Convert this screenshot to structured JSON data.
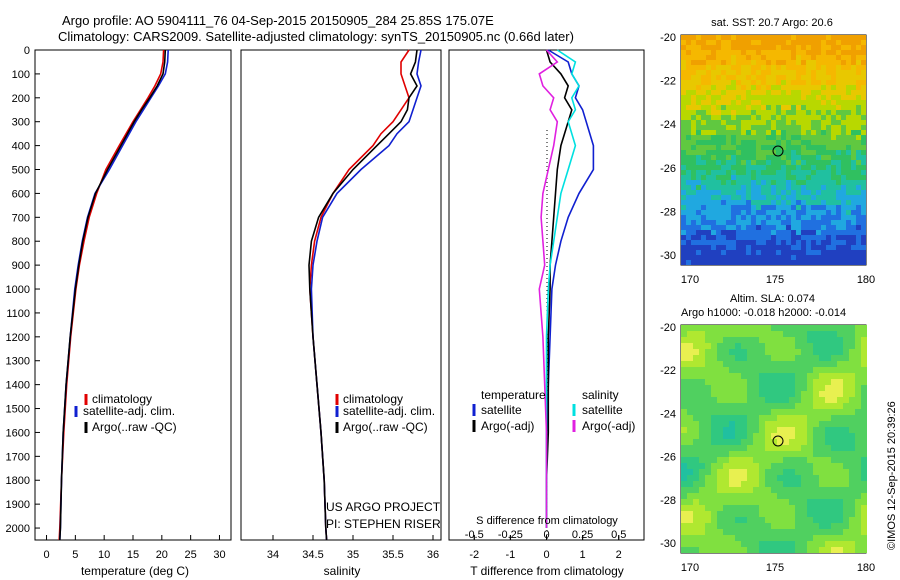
{
  "header": {
    "title_line1": "Argo profile: AO 5904111_76 04-Sep-2015 20150905_284 25.85S 175.07E",
    "title_line2": "Climatology: CARS2009. Satellite-adjusted climatology: synTS_20150905.nc (0.66d later)"
  },
  "colors": {
    "climatology": "#e00000",
    "satellite": "#1020d0",
    "argo": "#000000",
    "satellite_salinity": "#00e0e0",
    "argo_salinity": "#e020e0"
  },
  "credit": {
    "line1": "US ARGO PROJECT",
    "line2": "PI: STEPHEN RISER"
  },
  "timestamp": "©IMOS 12-Sep-2015 20:39:26",
  "map_sst": {
    "title": "sat. SST: 20.7  Argo: 20.6",
    "lat_ticks": [
      "-20",
      "-22",
      "-24",
      "-26",
      "-28",
      "-30"
    ],
    "lon_ticks": [
      "170",
      "175",
      "180"
    ],
    "marker": {
      "lon": 175.07,
      "lat": -25.85
    }
  },
  "map_sla": {
    "title_line1": "Altim. SLA: 0.074",
    "title_line2": "Argo h1000: -0.018  h2000: -0.014",
    "lat_ticks": [
      "-20",
      "-22",
      "-24",
      "-26",
      "-28",
      "-30"
    ],
    "lon_ticks": [
      "170",
      "175",
      "180"
    ],
    "marker": {
      "lon": 175.07,
      "lat": -25.85
    }
  },
  "chart_data": [
    {
      "type": "line",
      "xlabel": "temperature (deg C)",
      "xlim": [
        -2,
        32
      ],
      "ylim": [
        2050,
        0
      ],
      "x_ticks": [
        "0",
        "5",
        "10",
        "15",
        "20",
        "25",
        "30"
      ],
      "y_ticks": [
        "0",
        "100",
        "200",
        "300",
        "400",
        "500",
        "600",
        "700",
        "800",
        "900",
        "1000",
        "1100",
        "1200",
        "1300",
        "1400",
        "1500",
        "1600",
        "1700",
        "1800",
        "1900",
        "2000"
      ],
      "legend": [
        "climatology",
        "satellite-adj. clim.",
        "Argo(..raw -QC)"
      ],
      "depth": [
        0,
        50,
        100,
        150,
        200,
        250,
        300,
        400,
        500,
        600,
        700,
        800,
        900,
        1000,
        1200,
        1400,
        1600,
        1800,
        2000,
        2050
      ],
      "series": [
        {
          "name": "climatology",
          "values": [
            20.3,
            20.2,
            19.8,
            18.8,
            17.6,
            16.3,
            15.0,
            12.6,
            10.3,
            8.7,
            7.4,
            6.5,
            5.7,
            5.1,
            4.2,
            3.5,
            3.0,
            2.6,
            2.3,
            2.2
          ]
        },
        {
          "name": "satellite-adj. clim.",
          "values": [
            21.1,
            21.0,
            20.6,
            19.4,
            18.1,
            16.8,
            15.5,
            13.2,
            10.9,
            8.4,
            7.1,
            6.2,
            5.5,
            4.9,
            4.1,
            3.4,
            2.9,
            2.6,
            2.4,
            2.3
          ]
        },
        {
          "name": "Argo(..raw -QC)",
          "values": [
            20.6,
            20.5,
            20.2,
            19.2,
            17.9,
            16.5,
            15.2,
            12.9,
            10.6,
            8.5,
            7.2,
            6.3,
            5.6,
            5.0,
            4.1,
            3.4,
            2.9,
            2.6,
            2.4,
            2.3
          ]
        }
      ]
    },
    {
      "type": "line",
      "xlabel": "salinity",
      "xlim": [
        33.6,
        36.1
      ],
      "ylim": [
        2050,
        0
      ],
      "x_ticks": [
        "34",
        "34.5",
        "35",
        "35.5",
        "36"
      ],
      "legend": [
        "climatology",
        "satellite-adj. clim.",
        "Argo(..raw -QC)"
      ],
      "depth": [
        0,
        50,
        100,
        150,
        200,
        250,
        300,
        350,
        400,
        500,
        600,
        700,
        800,
        900,
        1000,
        1200,
        1400,
        1600,
        1800,
        2000,
        2050
      ],
      "series": [
        {
          "name": "climatology",
          "values": [
            35.7,
            35.6,
            35.6,
            35.65,
            35.7,
            35.6,
            35.5,
            35.35,
            35.25,
            34.95,
            34.75,
            34.6,
            34.52,
            34.48,
            34.46,
            34.5,
            34.55,
            34.6,
            34.64,
            34.66,
            34.67
          ]
        },
        {
          "name": "satellite-adj. clim.",
          "values": [
            35.85,
            35.82,
            35.8,
            35.85,
            35.8,
            35.75,
            35.7,
            35.55,
            35.45,
            35.1,
            34.8,
            34.62,
            34.55,
            34.5,
            34.48,
            34.5,
            34.55,
            34.6,
            34.64,
            34.66,
            34.67
          ]
        },
        {
          "name": "Argo(..raw -QC)",
          "values": [
            35.8,
            35.78,
            35.72,
            35.8,
            35.7,
            35.68,
            35.6,
            35.45,
            35.3,
            35.0,
            34.75,
            34.57,
            34.48,
            34.45,
            34.46,
            34.5,
            34.55,
            34.6,
            34.64,
            34.66,
            34.67
          ]
        }
      ]
    },
    {
      "type": "line",
      "xlabel": "T difference from climatology",
      "xlabel_top": "S difference from climatology",
      "xlim": [
        -2.7,
        2.7
      ],
      "ylim": [
        2050,
        0
      ],
      "x_ticks": [
        "-2",
        "-1",
        "0",
        "1",
        "2"
      ],
      "x_ticks_top": [
        "-0.5",
        "-0.25",
        "0",
        "0.25",
        "0.5"
      ],
      "legend_left_title": "temperature",
      "legend_right_title": "salinity",
      "legend_left": [
        "satellite",
        "Argo(-adj)"
      ],
      "legend_right": [
        "satellite",
        "Argo(-adj)"
      ],
      "depth": [
        0,
        50,
        100,
        150,
        200,
        250,
        300,
        400,
        500,
        600,
        700,
        800,
        900,
        1000,
        1200,
        1400,
        1600,
        1800,
        2000
      ],
      "series": [
        {
          "name": "temperature satellite",
          "values": [
            0.05,
            0.6,
            0.7,
            0.9,
            0.8,
            1.0,
            1.1,
            1.3,
            1.3,
            0.9,
            0.6,
            0.4,
            0.25,
            0.15,
            0.1,
            0.05,
            0.0,
            0.0,
            0.0
          ]
        },
        {
          "name": "temperature Argo(-adj)",
          "values": [
            0.0,
            0.1,
            0.4,
            0.6,
            0.5,
            0.7,
            0.6,
            0.4,
            0.3,
            0.25,
            0.2,
            0.15,
            0.1,
            0.1,
            0.05,
            0.05,
            0.05,
            0.0,
            0.0
          ]
        },
        {
          "name": "salinity satellite",
          "values": [
            0.3,
            0.8,
            0.7,
            0.9,
            0.7,
            0.8,
            0.6,
            0.8,
            0.6,
            0.4,
            0.3,
            0.2,
            0.1,
            0.05,
            0.0,
            0.0,
            0.0,
            0.0,
            0.0
          ]
        },
        {
          "name": "salinity Argo(-adj)",
          "values": [
            0.0,
            0.3,
            -0.2,
            -0.1,
            0.2,
            0.1,
            0.3,
            0.2,
            0.05,
            -0.1,
            -0.15,
            -0.1,
            -0.05,
            -0.2,
            -0.1,
            -0.05,
            0.0,
            0.0,
            0.0
          ]
        }
      ]
    }
  ]
}
